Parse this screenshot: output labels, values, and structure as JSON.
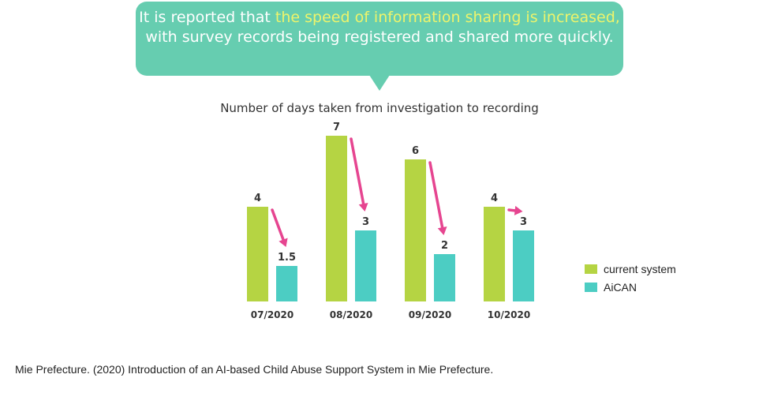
{
  "callout": {
    "text_before": "It is reported that ",
    "highlight": "the speed of information sharing is increased,",
    "text_after": " with survey records being registered and shared more quickly.",
    "background_color": "#66cdb0",
    "highlight_color": "#eef46b"
  },
  "chart_data": {
    "type": "bar",
    "title": "Number of days taken from investigation to recording",
    "categories": [
      "07/2020",
      "08/2020",
      "09/2020",
      "10/2020"
    ],
    "series": [
      {
        "name": "current system",
        "values": [
          4,
          7,
          6,
          4
        ],
        "color": "#b5d443"
      },
      {
        "name": "AiCAN",
        "values": [
          1.5,
          3,
          2,
          3
        ],
        "color": "#4ccdc3"
      }
    ],
    "value_labels": [
      [
        "4",
        "7",
        "6",
        "4"
      ],
      [
        "1.5",
        "3",
        "2",
        "3"
      ]
    ],
    "ylim": [
      0,
      7
    ],
    "grid": false,
    "legend_position": "right",
    "arrow_color": "#e64590"
  },
  "source": "Mie Prefecture. (2020) Introduction of an AI-based Child Abuse Support System in Mie Prefecture."
}
